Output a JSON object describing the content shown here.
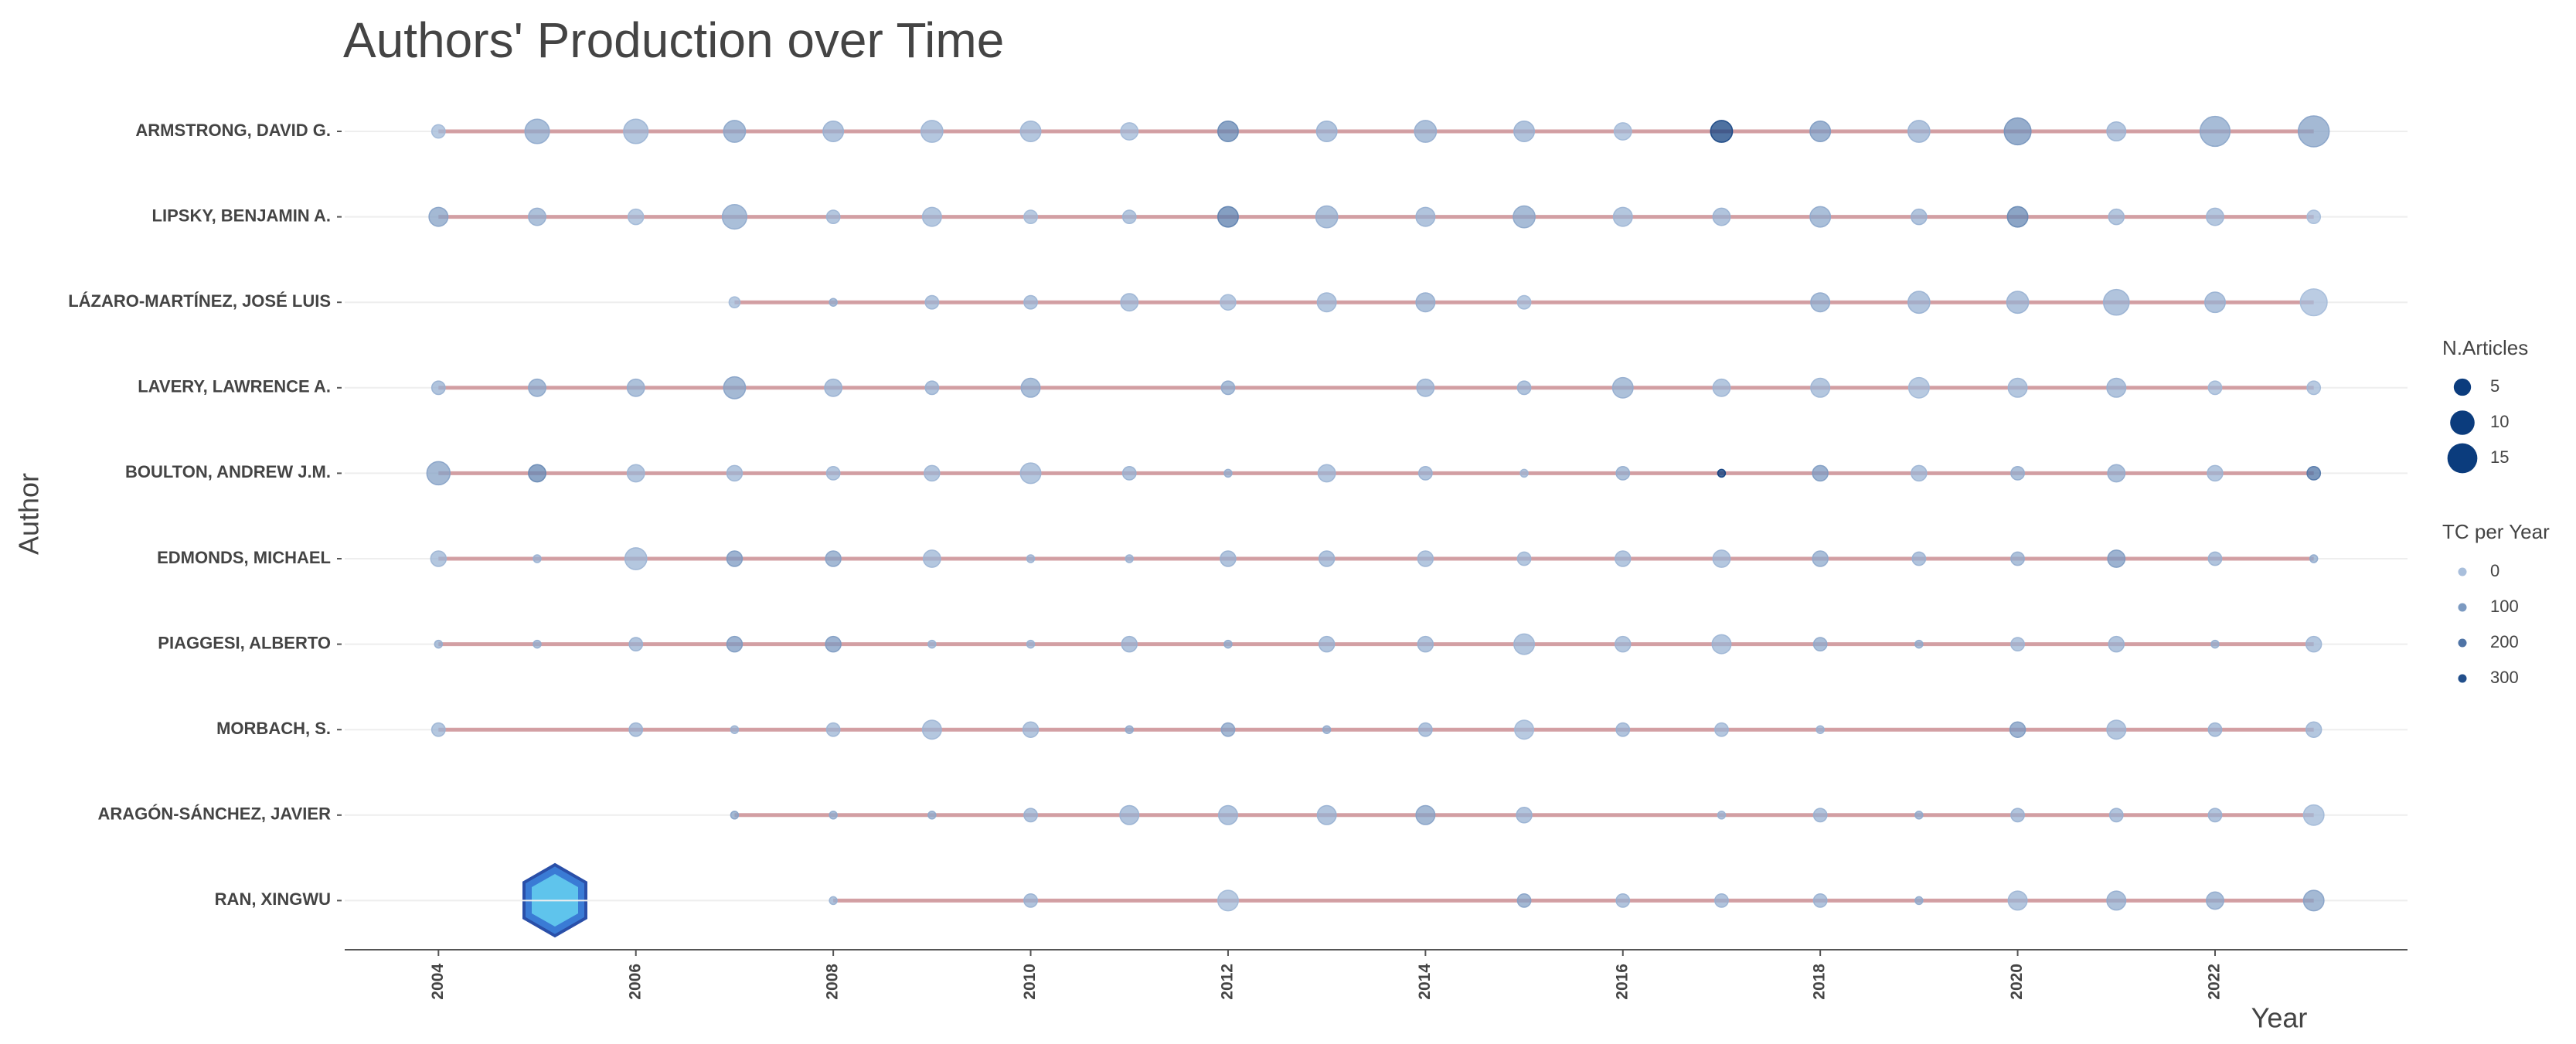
{
  "chart_data": {
    "type": "bubble",
    "title": "Authors' Production over Time",
    "xlabel": "Year",
    "ylabel": "Author",
    "xlim": [
      2003.05,
      2023.95
    ],
    "xticks": [
      2004,
      2006,
      2008,
      2010,
      2012,
      2014,
      2016,
      2018,
      2020,
      2022
    ],
    "line_color": "#c98a8f",
    "color_scale": [
      "#a9bfdc",
      "#0b3c7d"
    ],
    "size_legend": {
      "title": "N.Articles",
      "values": [
        5,
        10,
        15
      ]
    },
    "color_legend": {
      "title": "TC per Year",
      "values": [
        0,
        100,
        200,
        300
      ]
    },
    "series": [
      {
        "name": "ARMSTRONG, DAVID G.",
        "x": [
          2004,
          2005,
          2006,
          2007,
          2008,
          2009,
          2010,
          2011,
          2012,
          2013,
          2014,
          2015,
          2016,
          2017,
          2018,
          2019,
          2020,
          2021,
          2022,
          2023
        ],
        "values": [
          3,
          10,
          10,
          8,
          7,
          8,
          7,
          5,
          7,
          7,
          8,
          7,
          5,
          8,
          7,
          8,
          12,
          6,
          15,
          16
        ],
        "tc": [
          20,
          60,
          30,
          70,
          40,
          30,
          30,
          20,
          150,
          40,
          50,
          40,
          20,
          330,
          100,
          40,
          120,
          30,
          70,
          80
        ]
      },
      {
        "name": "LIPSKY, BENJAMIN A.",
        "x": [
          2004,
          2005,
          2006,
          2007,
          2008,
          2009,
          2010,
          2011,
          2012,
          2013,
          2014,
          2015,
          2016,
          2017,
          2018,
          2019,
          2020,
          2021,
          2022,
          2023
        ],
        "values": [
          6,
          5,
          4,
          10,
          3,
          6,
          3,
          3,
          7,
          8,
          6,
          8,
          6,
          5,
          7,
          4,
          7,
          4,
          5,
          3
        ],
        "tc": [
          80,
          50,
          20,
          60,
          30,
          30,
          20,
          30,
          170,
          50,
          40,
          70,
          30,
          40,
          60,
          40,
          150,
          30,
          30,
          10
        ]
      },
      {
        "name": "LÁZARO-MARTÍNEZ, JOSÉ LUIS",
        "x": [
          2007,
          2008,
          2009,
          2010,
          2011,
          2012,
          2013,
          2014,
          2015,
          2018,
          2019,
          2020,
          2021,
          2022,
          2023
        ],
        "values": [
          2,
          1,
          3,
          3,
          5,
          4,
          6,
          6,
          3,
          6,
          8,
          8,
          11,
          7,
          12
        ],
        "tc": [
          20,
          50,
          30,
          30,
          30,
          20,
          30,
          50,
          20,
          60,
          40,
          40,
          40,
          40,
          10
        ]
      },
      {
        "name": "LAVERY, LAWRENCE A.",
        "x": [
          2004,
          2005,
          2006,
          2007,
          2008,
          2009,
          2010,
          2012,
          2014,
          2015,
          2016,
          2017,
          2018,
          2019,
          2020,
          2021,
          2022,
          2023
        ],
        "values": [
          3,
          5,
          5,
          8,
          5,
          3,
          6,
          3,
          5,
          3,
          7,
          5,
          6,
          7,
          6,
          6,
          3,
          3
        ],
        "tc": [
          40,
          70,
          50,
          80,
          40,
          40,
          60,
          60,
          40,
          40,
          50,
          30,
          30,
          20,
          30,
          40,
          20,
          20
        ]
      },
      {
        "name": "BOULTON, ANDREW J.M.",
        "x": [
          2004,
          2005,
          2006,
          2007,
          2008,
          2009,
          2010,
          2011,
          2012,
          2013,
          2014,
          2015,
          2016,
          2017,
          2018,
          2019,
          2020,
          2021,
          2022,
          2023
        ],
        "values": [
          9,
          5,
          5,
          4,
          3,
          4,
          7,
          3,
          1,
          5,
          3,
          1,
          3,
          1,
          4,
          4,
          3,
          5,
          4,
          3
        ],
        "tc": [
          80,
          150,
          30,
          30,
          30,
          30,
          30,
          40,
          50,
          30,
          40,
          30,
          50,
          350,
          100,
          30,
          50,
          50,
          30,
          200
        ]
      },
      {
        "name": "EDMONDS, MICHAEL",
        "x": [
          2004,
          2005,
          2006,
          2007,
          2008,
          2009,
          2010,
          2011,
          2012,
          2013,
          2014,
          2015,
          2016,
          2017,
          2018,
          2019,
          2020,
          2021,
          2022,
          2023
        ],
        "values": [
          4,
          1,
          8,
          4,
          4,
          5,
          1,
          1,
          4,
          4,
          4,
          3,
          4,
          5,
          4,
          3,
          3,
          5,
          3,
          1
        ],
        "tc": [
          30,
          40,
          30,
          100,
          80,
          30,
          40,
          40,
          40,
          40,
          30,
          30,
          30,
          30,
          60,
          40,
          50,
          100,
          40,
          60
        ]
      },
      {
        "name": "PIAGGESI, ALBERTO",
        "x": [
          2004,
          2005,
          2006,
          2007,
          2008,
          2009,
          2010,
          2011,
          2012,
          2013,
          2014,
          2015,
          2016,
          2017,
          2018,
          2019,
          2020,
          2021,
          2022,
          2023
        ],
        "values": [
          1,
          1,
          3,
          4,
          4,
          1,
          1,
          4,
          1,
          4,
          4,
          7,
          4,
          6,
          3,
          1,
          3,
          4,
          1,
          4
        ],
        "tc": [
          50,
          50,
          40,
          100,
          100,
          40,
          40,
          40,
          60,
          40,
          40,
          30,
          30,
          30,
          60,
          60,
          30,
          40,
          50,
          30
        ]
      },
      {
        "name": "MORBACH, S.",
        "x": [
          2004,
          2006,
          2007,
          2008,
          2009,
          2010,
          2011,
          2012,
          2013,
          2014,
          2015,
          2016,
          2017,
          2018,
          2020,
          2021,
          2022,
          2023
        ],
        "values": [
          3,
          3,
          1,
          3,
          6,
          4,
          1,
          3,
          1,
          3,
          6,
          3,
          3,
          1,
          4,
          6,
          3,
          4
        ],
        "tc": [
          30,
          40,
          40,
          30,
          30,
          30,
          60,
          80,
          60,
          40,
          20,
          40,
          30,
          40,
          100,
          30,
          40,
          30
        ]
      },
      {
        "name": "ARAGÓN-SÁNCHEZ, JAVIER",
        "x": [
          2007,
          2008,
          2009,
          2010,
          2011,
          2012,
          2013,
          2014,
          2015,
          2017,
          2018,
          2019,
          2020,
          2021,
          2022,
          2023
        ],
        "values": [
          1,
          1,
          1,
          3,
          6,
          6,
          6,
          6,
          4,
          1,
          3,
          1,
          3,
          3,
          3,
          7
        ],
        "tc": [
          80,
          60,
          60,
          40,
          40,
          40,
          40,
          80,
          40,
          40,
          40,
          60,
          40,
          40,
          40,
          20
        ]
      },
      {
        "name": "RAN, XINGWU",
        "x": [
          2008,
          2010,
          2012,
          2015,
          2016,
          2017,
          2018,
          2019,
          2020,
          2021,
          2022,
          2023
        ],
        "values": [
          1,
          3,
          7,
          3,
          3,
          3,
          3,
          1,
          6,
          6,
          5,
          7
        ],
        "tc": [
          40,
          40,
          20,
          80,
          40,
          40,
          40,
          60,
          30,
          50,
          60,
          80
        ]
      }
    ]
  }
}
